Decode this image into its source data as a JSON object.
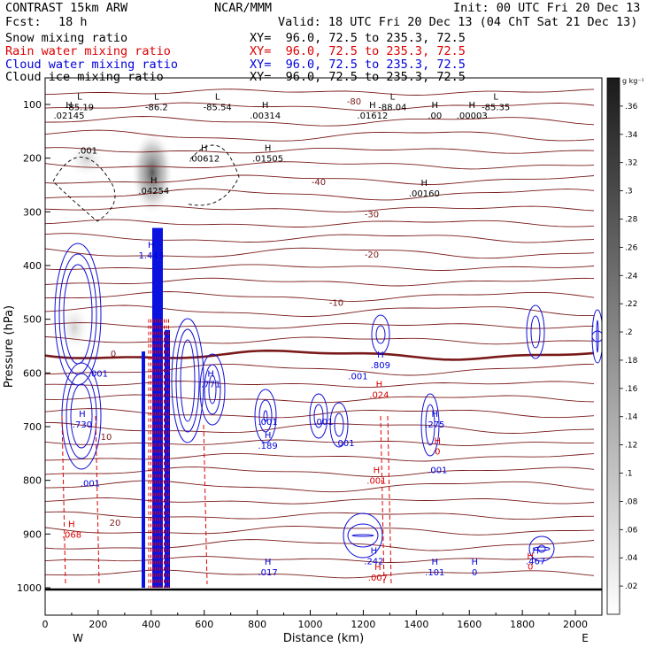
{
  "header": {
    "model": "CONTRAST 15km ARW",
    "org": "NCAR/MMM",
    "init": "Init: 00 UTC Fri 20 Dec 13",
    "fcst_label": "Fcst:",
    "fcst_value": "18 h",
    "valid": "Valid: 18 UTC Fri 20 Dec 13 (04 ChT Sat 21 Dec 13)"
  },
  "fields": [
    {
      "label": "Snow mixing ratio",
      "xy": "XY=  96.0, 72.5 to 235.3, 72.5",
      "color": "#000000"
    },
    {
      "label": "Rain water mixing ratio",
      "xy": "XY=  96.0, 72.5 to 235.3, 72.5",
      "color": "#dd0000"
    },
    {
      "label": "Cloud water mixing ratio",
      "xy": "XY=  96.0, 72.5 to 235.3, 72.5",
      "color": "#0000dd"
    },
    {
      "label": "Cloud ice mixing ratio",
      "xy": "XY=  96.0, 72.5 to 235.3, 72.5",
      "color": "#000000"
    }
  ],
  "chart_data": {
    "type": "contour",
    "xlabel": "Distance (km)",
    "ylabel": "Pressure (hPa)",
    "xlim": [
      0,
      2100
    ],
    "ylim": [
      1050,
      70
    ],
    "x_ticks": [
      "0",
      "200",
      "400",
      "600",
      "800",
      "1000",
      "1200",
      "1400",
      "1600",
      "1800",
      "2000"
    ],
    "y_ticks": [
      "100",
      "200",
      "300",
      "400",
      "500",
      "600",
      "700",
      "800",
      "900",
      "1000"
    ],
    "west_label": "W",
    "east_label": "E",
    "colorbar": {
      "unit": "g kg⁻¹",
      "ticks": [
        ".02",
        ".04",
        ".06",
        ".08",
        ".1",
        ".12",
        ".14",
        ".16",
        ".18",
        ".2",
        ".22",
        ".24",
        ".26",
        ".28",
        ".3",
        ".32",
        ".34",
        ".36"
      ]
    },
    "temperature_contours": [
      {
        "label": "-80",
        "p": 95
      },
      {
        "label": "-40",
        "p": 245
      },
      {
        "label": "-30",
        "p": 305
      },
      {
        "label": "-20",
        "p": 380
      },
      {
        "label": "-10",
        "p": 470
      },
      {
        "label": "0",
        "p": 565
      },
      {
        "label": "10",
        "p": 720
      },
      {
        "label": "20",
        "p": 880
      }
    ],
    "snow_annotations": [
      {
        "kind": "L",
        "value": "-85.19",
        "x": 130,
        "p": 104
      },
      {
        "kind": "L",
        "value": "-86.2",
        "x": 420,
        "p": 104
      },
      {
        "kind": "L",
        "value": "-85.54",
        "x": 650,
        "p": 104
      },
      {
        "kind": "L",
        "value": "-88.04",
        "x": 1310,
        "p": 104
      },
      {
        "kind": "L",
        "value": "-85.35",
        "x": 1700,
        "p": 104
      },
      {
        "kind": "H",
        "value": ".02145",
        "x": 90,
        "p": 120
      },
      {
        "kind": "H",
        "value": ".00314",
        "x": 830,
        "p": 120
      },
      {
        "kind": "H",
        "value": ".01612",
        "x": 1235,
        "p": 120
      },
      {
        "kind": "H",
        "value": ".00",
        "x": 1470,
        "p": 120
      },
      {
        "kind": "H",
        "value": ".00003",
        "x": 1610,
        "p": 120
      },
      {
        "kind": "",
        "value": ".001",
        "x": 160,
        "p": 185
      },
      {
        "kind": "H",
        "value": ".00612",
        "x": 600,
        "p": 200
      },
      {
        "kind": "H",
        "value": ".01505",
        "x": 840,
        "p": 200
      },
      {
        "kind": "H",
        "value": ".04254",
        "x": 410,
        "p": 260
      },
      {
        "kind": "H",
        "value": ".00160",
        "x": 1430,
        "p": 265
      }
    ],
    "rain_annotations": [
      {
        "kind": "H",
        "value": ".068",
        "x": 100,
        "p": 900
      },
      {
        "kind": "H",
        "value": ".001",
        "x": 1250,
        "p": 800
      },
      {
        "kind": "H",
        "value": ".007",
        "x": 1255,
        "p": 980
      },
      {
        "kind": "H",
        "value": ".024",
        "x": 1260,
        "p": 640
      },
      {
        "kind": "H",
        "value": "0",
        "x": 1480,
        "p": 745
      },
      {
        "kind": "H",
        "value": "0",
        "x": 1830,
        "p": 960
      }
    ],
    "cloud_annotations": [
      {
        "kind": "H",
        "value": ".730",
        "x": 140,
        "p": 695
      },
      {
        "kind": "",
        "value": ".001",
        "x": 170,
        "p": 805
      },
      {
        "kind": "H",
        "value": "1.443",
        "x": 400,
        "p": 380
      },
      {
        "kind": "",
        "value": ".001",
        "x": 200,
        "p": 600
      },
      {
        "kind": "H",
        "value": ".771",
        "x": 625,
        "p": 620
      },
      {
        "kind": "",
        "value": ".001",
        "x": 840,
        "p": 690
      },
      {
        "kind": "",
        "value": ".001",
        "x": 1050,
        "p": 690
      },
      {
        "kind": "",
        "value": ".001",
        "x": 1130,
        "p": 730
      },
      {
        "kind": "H",
        "value": ".189",
        "x": 840,
        "p": 735
      },
      {
        "kind": "H",
        "value": ".809",
        "x": 1265,
        "p": 585
      },
      {
        "kind": "",
        "value": ".001",
        "x": 1180,
        "p": 605
      },
      {
        "kind": "H",
        "value": ".275",
        "x": 1470,
        "p": 695
      },
      {
        "kind": "",
        "value": ".001",
        "x": 1480,
        "p": 780
      },
      {
        "kind": "H",
        "value": ".242",
        "x": 1240,
        "p": 950
      },
      {
        "kind": "H",
        "value": ".017",
        "x": 840,
        "p": 970
      },
      {
        "kind": "H",
        "value": ".101",
        "x": 1470,
        "p": 970
      },
      {
        "kind": "H",
        "value": "0",
        "x": 1620,
        "p": 970
      },
      {
        "kind": "H",
        "value": ".467",
        "x": 1850,
        "p": 950
      }
    ]
  }
}
